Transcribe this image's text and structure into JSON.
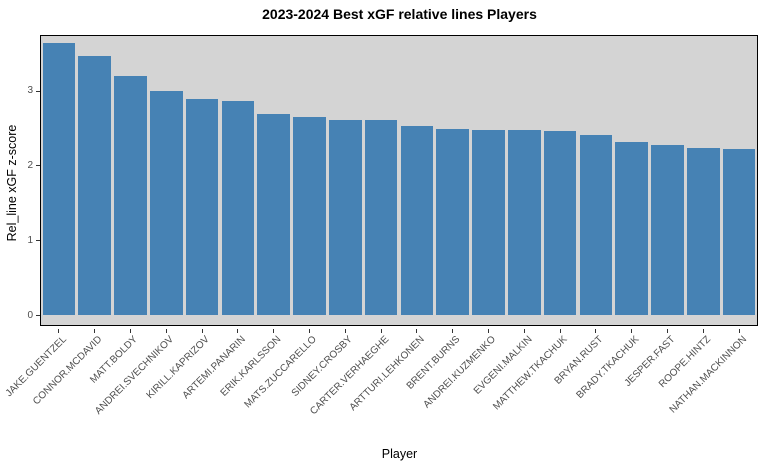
{
  "chart_data": {
    "type": "bar",
    "title": "2023-2024 Best xGF relative lines Players",
    "xlabel": "Player",
    "ylabel": "Rel_line xGF z-score",
    "categories": [
      "JAKE.GUENTZEL",
      "CONNOR.MCDAVID",
      "MATT.BOLDY",
      "ANDREI.SVECHNIKOV",
      "KIRILL.KAPRIZOV",
      "ARTEMI.PANARIN",
      "ERIK.KARLSSON",
      "MATS.ZUCCARELLO",
      "SIDNEY.CROSBY",
      "CARTER.VERHAEGHE",
      "ARTTURI.LEHKONEN",
      "BRENT.BURNS",
      "ANDREI.KUZMENKO",
      "EVGENI.MALKIN",
      "MATTHEW.TKACHUK",
      "BRYAN.RUST",
      "BRADY.TKACHUK",
      "JESPER.FAST",
      "ROOPE.HINTZ",
      "NATHAN.MACKINNON"
    ],
    "values": [
      3.63,
      3.46,
      3.2,
      3.0,
      2.88,
      2.86,
      2.69,
      2.65,
      2.61,
      2.6,
      2.52,
      2.49,
      2.47,
      2.47,
      2.46,
      2.4,
      2.31,
      2.27,
      2.23,
      2.22
    ],
    "yticks": [
      0,
      1,
      2,
      3
    ],
    "ytick_labels": [
      "0",
      "1",
      "2",
      "3"
    ],
    "ylim": [
      0,
      3.75
    ],
    "grid": false,
    "legend": false,
    "colors": {
      "bar": "#4682B4",
      "panel_bg": "#D4D4D4",
      "panel_border": "#000000",
      "tick_text": "#4D4D4D",
      "title_text": "#000000",
      "figure_bg": "#FFFFFF"
    }
  }
}
